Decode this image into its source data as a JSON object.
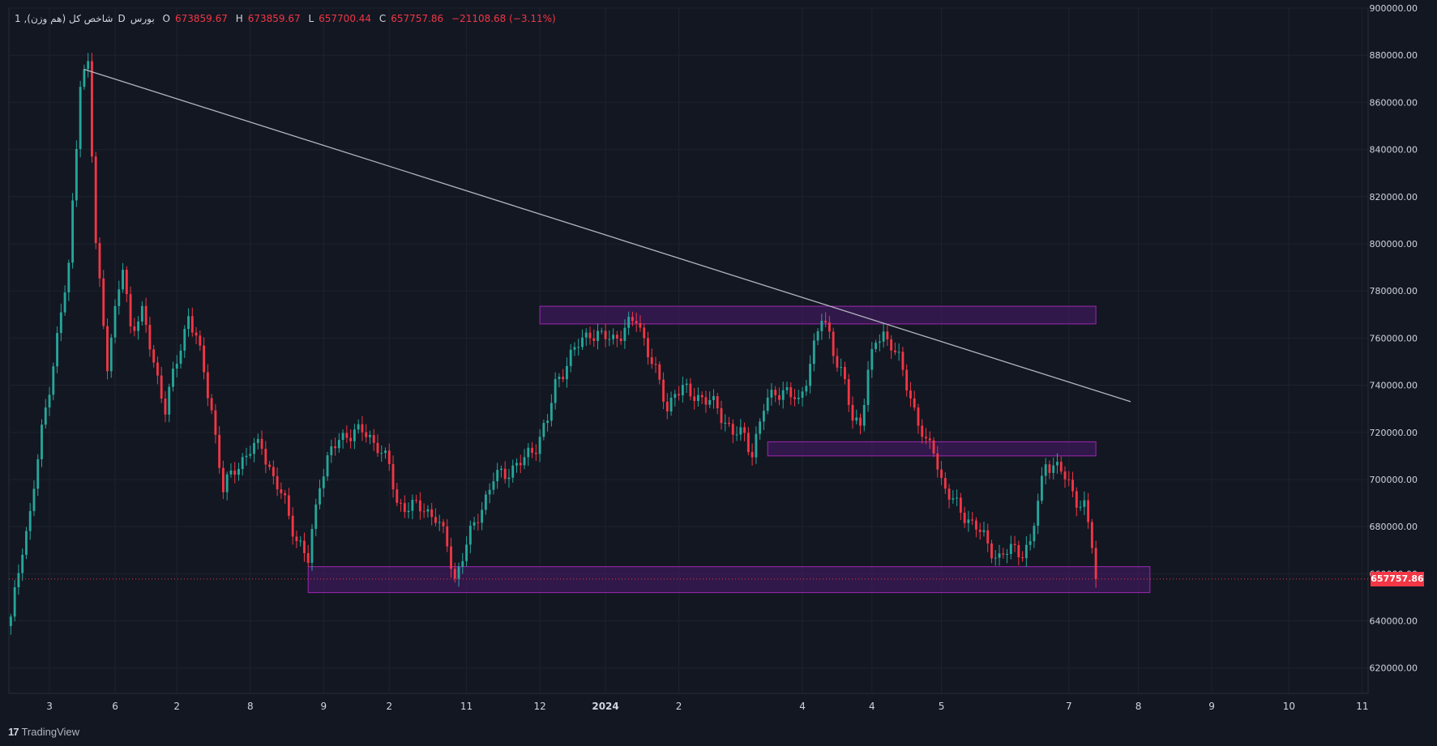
{
  "legend": {
    "symbol": "1 ,(هم وزن) شاخص کل",
    "interval": "D",
    "exchange": "بورس",
    "open_label": "O",
    "open": "673859.67",
    "high_label": "H",
    "high": "673859.67",
    "low_label": "L",
    "low": "657700.44",
    "close_label": "C",
    "close": "657757.86",
    "change": "−21108.68 (−3.11%)"
  },
  "branding": {
    "logo_text": "17",
    "name": "TradingView"
  },
  "current_price_label": "657757.86",
  "colors": {
    "background": "#131722",
    "grid": "#1e222d",
    "up": "#26a69a",
    "down": "#f23645",
    "zone_fill": "#4a1a6b",
    "zone_stroke": "#9c27b0",
    "trendline": "#b2b5be",
    "axis_text": "#d1d4dc"
  },
  "chart_data": {
    "type": "candlestick",
    "y_axis_labels": [
      "900000.00",
      "880000.00",
      "860000.00",
      "840000.00",
      "820000.00",
      "800000.00",
      "780000.00",
      "760000.00",
      "740000.00",
      "720000.00",
      "700000.00",
      "680000.00",
      "660000.00",
      "640000.00",
      "620000.00"
    ],
    "ylim": [
      612000,
      900000
    ],
    "x_axis_labels": [
      "3",
      "6",
      "2",
      "8",
      "9",
      "2",
      "11",
      "12",
      "2024",
      "2",
      "4",
      "4",
      "5",
      "7",
      "8",
      "9",
      "10",
      "11"
    ],
    "x_label_indices": [
      10,
      27,
      43,
      62,
      81,
      98,
      118,
      137,
      154,
      173,
      205,
      223,
      241,
      274,
      292,
      311,
      331,
      350
    ],
    "bar_count": 352,
    "price_points": [
      [
        0,
        640000
      ],
      [
        3,
        672000
      ],
      [
        5,
        685000
      ],
      [
        8,
        720000
      ],
      [
        12,
        760000
      ],
      [
        15,
        790000
      ],
      [
        18,
        870000
      ],
      [
        20,
        875000
      ],
      [
        22,
        800000
      ],
      [
        25,
        750000
      ],
      [
        27,
        770000
      ],
      [
        29,
        790000
      ],
      [
        31,
        765000
      ],
      [
        34,
        770000
      ],
      [
        37,
        750000
      ],
      [
        40,
        730000
      ],
      [
        43,
        750000
      ],
      [
        46,
        770000
      ],
      [
        48,
        760000
      ],
      [
        52,
        730000
      ],
      [
        55,
        695000
      ],
      [
        58,
        705000
      ],
      [
        62,
        712000
      ],
      [
        65,
        715000
      ],
      [
        68,
        700000
      ],
      [
        71,
        690000
      ],
      [
        74,
        675000
      ],
      [
        77,
        665000
      ],
      [
        80,
        700000
      ],
      [
        83,
        712000
      ],
      [
        87,
        720000
      ],
      [
        91,
        720000
      ],
      [
        95,
        715000
      ],
      [
        98,
        705000
      ],
      [
        100,
        690000
      ],
      [
        104,
        688000
      ],
      [
        107,
        688000
      ],
      [
        110,
        684000
      ],
      [
        113,
        672000
      ],
      [
        115,
        658000
      ],
      [
        118,
        672000
      ],
      [
        121,
        685000
      ],
      [
        125,
        700000
      ],
      [
        130,
        705000
      ],
      [
        133,
        708000
      ],
      [
        136,
        715000
      ],
      [
        139,
        725000
      ],
      [
        141,
        740000
      ],
      [
        144,
        750000
      ],
      [
        147,
        757000
      ],
      [
        150,
        763000
      ],
      [
        153,
        760000
      ],
      [
        156,
        760000
      ],
      [
        160,
        765000
      ],
      [
        162,
        768000
      ],
      [
        164,
        760000
      ],
      [
        167,
        745000
      ],
      [
        170,
        730000
      ],
      [
        172,
        738000
      ],
      [
        175,
        737000
      ],
      [
        179,
        735000
      ],
      [
        183,
        730000
      ],
      [
        187,
        720000
      ],
      [
        190,
        718000
      ],
      [
        192,
        712000
      ],
      [
        195,
        730000
      ],
      [
        198,
        738000
      ],
      [
        201,
        737000
      ],
      [
        204,
        732000
      ],
      [
        207,
        750000
      ],
      [
        210,
        768000
      ],
      [
        212,
        762000
      ],
      [
        214,
        750000
      ],
      [
        216,
        740000
      ],
      [
        218,
        725000
      ],
      [
        220,
        725000
      ],
      [
        222,
        745000
      ],
      [
        224,
        758000
      ],
      [
        226,
        762000
      ],
      [
        228,
        758000
      ],
      [
        230,
        750000
      ],
      [
        233,
        735000
      ],
      [
        235,
        725000
      ],
      [
        237,
        714000
      ],
      [
        239,
        713000
      ],
      [
        241,
        700000
      ],
      [
        244,
        690000
      ],
      [
        247,
        685000
      ],
      [
        250,
        680000
      ],
      [
        253,
        672000
      ],
      [
        256,
        667000
      ],
      [
        259,
        670000
      ],
      [
        262,
        670000
      ],
      [
        264,
        672000
      ],
      [
        266,
        690000
      ],
      [
        268,
        708000
      ],
      [
        270,
        706000
      ],
      [
        272,
        703000
      ],
      [
        274,
        698000
      ],
      [
        276,
        692000
      ],
      [
        278,
        688000
      ],
      [
        280,
        672000
      ],
      [
        281,
        657758
      ]
    ],
    "up_dates_sample": [],
    "zones": [
      {
        "x_start": 137,
        "x_end": 281,
        "y_low": 766000,
        "y_high": 773500
      },
      {
        "x_start": 196,
        "x_end": 281,
        "y_low": 710000,
        "y_high": 716000
      },
      {
        "x_start": 77,
        "x_end": 295,
        "y_low": 652000,
        "y_high": 663000
      }
    ],
    "trendline": {
      "x1": 19,
      "y1": 874000,
      "x2": 290,
      "y2": 733000
    },
    "current_price": 657757.86
  }
}
